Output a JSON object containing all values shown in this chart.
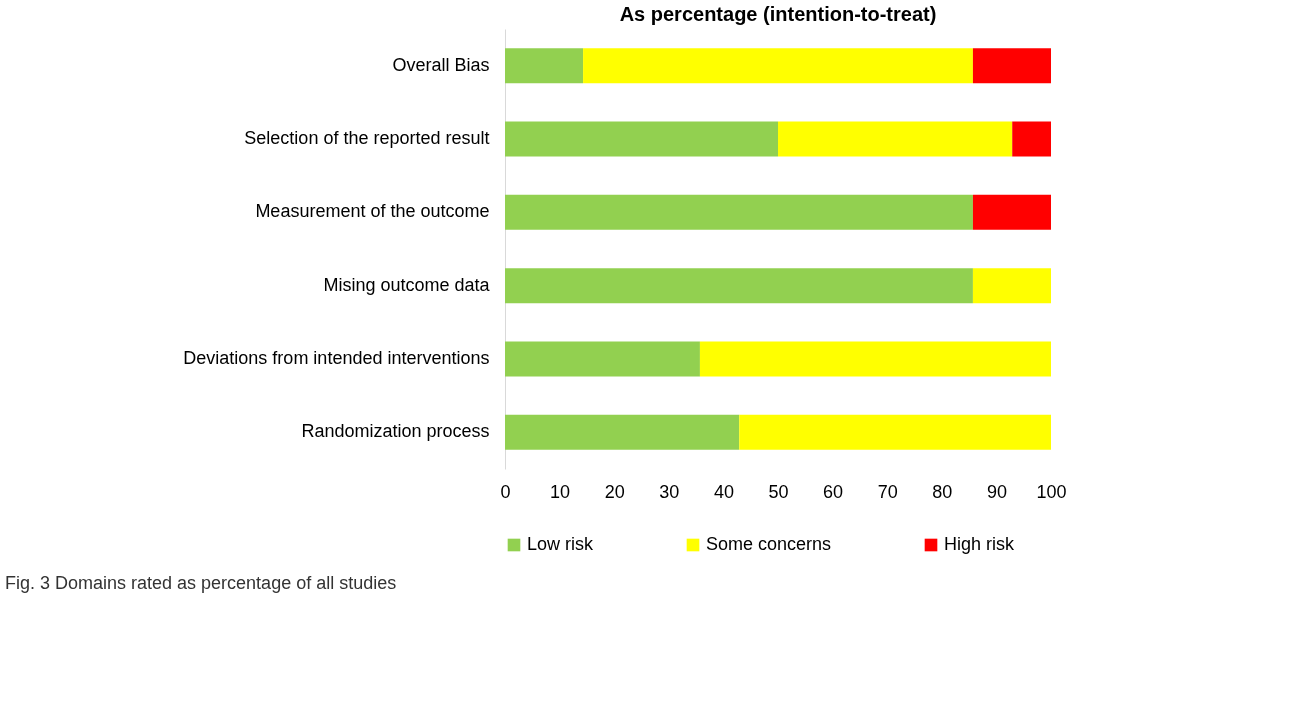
{
  "chart_data": {
    "type": "bar",
    "orientation": "horizontal",
    "stacked": true,
    "title": "As percentage (intention-to-treat)",
    "categories": [
      "Overall Bias",
      "Selection of the reported result",
      "Measurement of the outcome",
      "Mising outcome data",
      "Deviations from intended interventions",
      "Randomization process"
    ],
    "series": [
      {
        "name": "Low risk",
        "color": "#92d050",
        "values": [
          14.3,
          50,
          85.7,
          85.7,
          35.7,
          42.9
        ]
      },
      {
        "name": "Some concerns",
        "color": "#ffff00",
        "values": [
          71.4,
          42.9,
          null,
          14.3,
          64.3,
          57.1
        ]
      },
      {
        "name": "High risk",
        "color": "#ff0000",
        "values": [
          14.3,
          7.1,
          14.3,
          null,
          null,
          null
        ]
      }
    ],
    "xlim": [
      0,
      100
    ],
    "xticks": [
      0,
      10,
      20,
      30,
      40,
      50,
      60,
      70,
      80,
      90,
      100
    ],
    "grid": false,
    "legend": "bottom",
    "annotations": [
      "Fig. 3 Domains rated as percentage of all studies"
    ]
  }
}
